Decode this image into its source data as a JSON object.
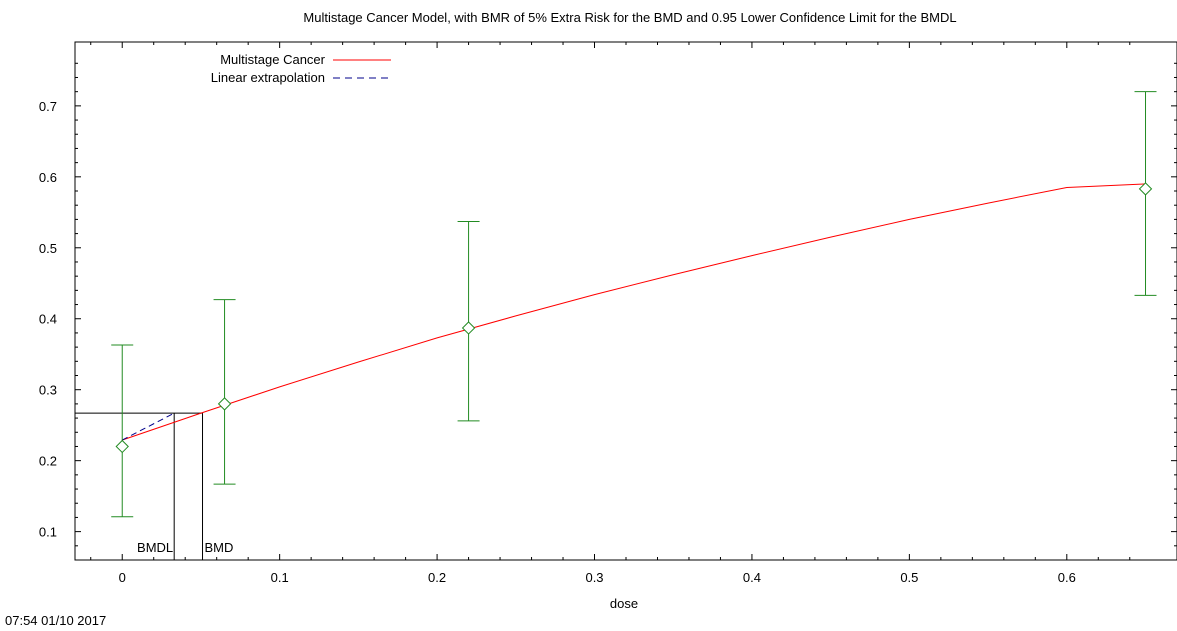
{
  "footer": {
    "timestamp": "07:54 01/10 2017"
  },
  "chart_data": {
    "type": "scatter",
    "title": "Multistage Cancer Model, with BMR of 5% Extra Risk for the BMD and 0.95 Lower Confidence Limit for the BMDL",
    "xlabel": "dose",
    "ylabel": "",
    "xlim": [
      -0.03,
      0.67
    ],
    "ylim": [
      0.06,
      0.79
    ],
    "xticks": [
      0,
      0.1,
      0.2,
      0.3,
      0.4,
      0.5,
      0.6
    ],
    "xtick_labels": [
      "0",
      "0.1",
      "0.2",
      "0.3",
      "0.4",
      "0.5",
      "0.6"
    ],
    "yticks": [
      0.1,
      0.2,
      0.3,
      0.4,
      0.5,
      0.6,
      0.7
    ],
    "ytick_labels": [
      "0.1",
      "0.2",
      "0.3",
      "0.4",
      "0.5",
      "0.6",
      "0.7"
    ],
    "legend_position": "top-left",
    "legend": [
      {
        "label": "Multistage Cancer",
        "color": "#ff0000",
        "style": "solid"
      },
      {
        "label": "Linear extrapolation",
        "color": "#00008b",
        "style": "dashed"
      }
    ],
    "observed": {
      "marker": "diamond",
      "color": "#228b22",
      "points": [
        {
          "x": 0,
          "y": 0.22,
          "lower": 0.121,
          "upper": 0.363
        },
        {
          "x": 0.065,
          "y": 0.28,
          "lower": 0.167,
          "upper": 0.427
        },
        {
          "x": 0.22,
          "y": 0.387,
          "lower": 0.256,
          "upper": 0.537
        },
        {
          "x": 0.65,
          "y": 0.583,
          "lower": 0.433,
          "upper": 0.72
        }
      ]
    },
    "model_curve": {
      "name": "Multistage Cancer",
      "color": "#ff0000",
      "x": [
        0,
        0.05,
        0.1,
        0.15,
        0.2,
        0.25,
        0.3,
        0.35,
        0.4,
        0.45,
        0.5,
        0.55,
        0.6,
        0.65
      ],
      "y": [
        0.229,
        0.267,
        0.304,
        0.339,
        0.373,
        0.404,
        0.434,
        0.462,
        0.489,
        0.515,
        0.54,
        0.563,
        0.585,
        0.59
      ]
    },
    "linear_extrapolation": {
      "name": "Linear extrapolation",
      "color": "#00008b",
      "x": [
        0,
        0.033
      ],
      "y": [
        0.229,
        0.267
      ]
    },
    "bmr_level": 0.267,
    "bmd": 0.051,
    "bmdl": 0.033,
    "annotations": [
      {
        "text": "BMDL",
        "x": 0.033,
        "anchor": "end"
      },
      {
        "text": "BMD",
        "x": 0.051,
        "anchor": "start"
      }
    ]
  }
}
